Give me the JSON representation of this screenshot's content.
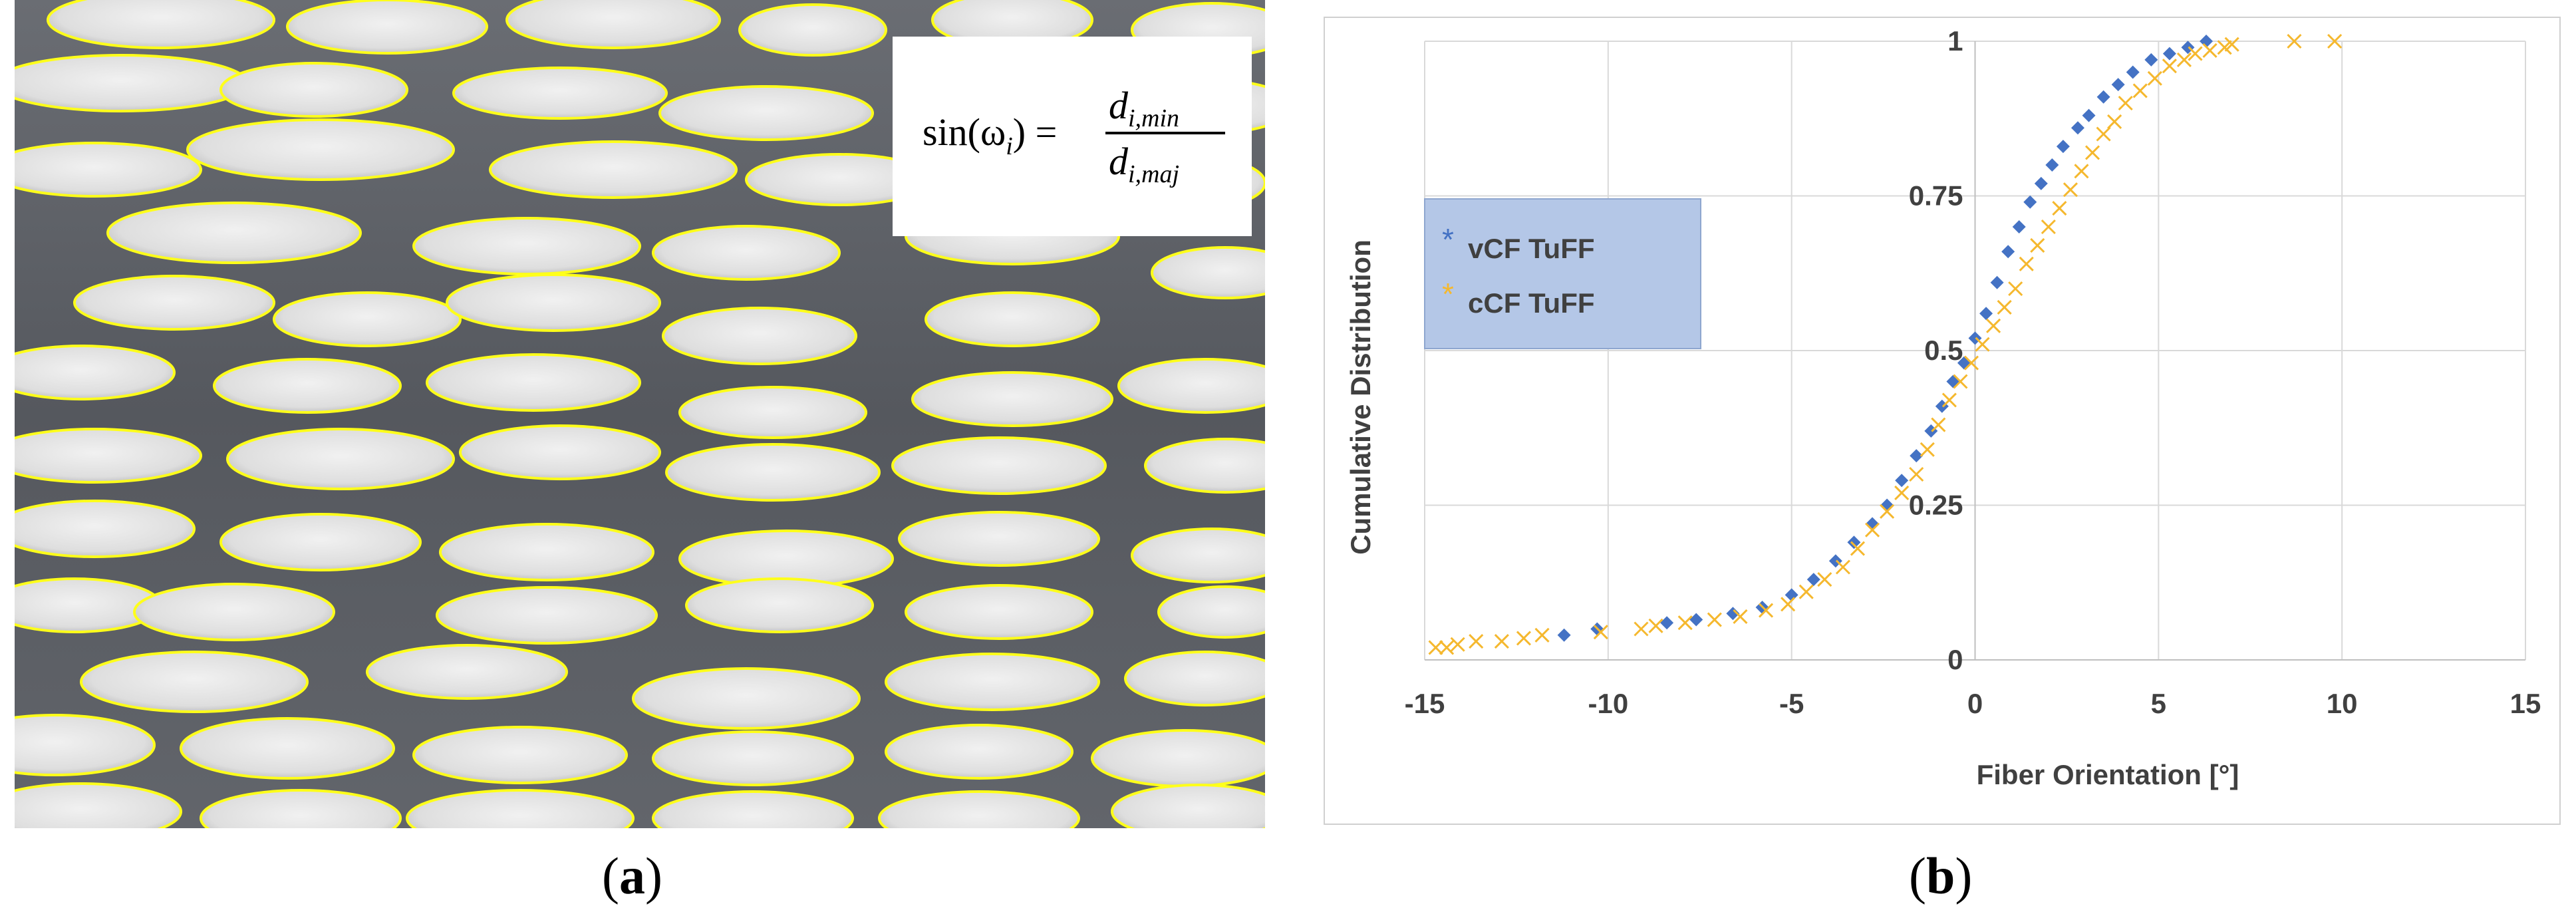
{
  "panel_a": {
    "label_open": "(",
    "label_letter": "a",
    "label_close": ")",
    "formula": {
      "lhs": "sin(ω",
      "lhs_sub": "i",
      "lhs_close": ") =",
      "num": "d",
      "num_sub": "i,min",
      "den": "d",
      "den_sub": "i,maj"
    },
    "outline_color": "#ffff1a",
    "background_color": "#5e6066",
    "fiber_fill": "#dcdcdc"
  },
  "panel_b": {
    "label_open": "(",
    "label_letter": "b",
    "label_close": ")"
  },
  "chart_data": {
    "type": "scatter",
    "title": "",
    "xlabel": "Fiber Orientation [°]",
    "ylabel": "Cumulative Distribution",
    "xlim": [
      -15,
      15
    ],
    "ylim": [
      0,
      1
    ],
    "xticks": [
      "-15",
      "-10",
      "-5",
      "0",
      "5",
      "10",
      "15"
    ],
    "yticks": [
      "0",
      "0.25",
      "0.5",
      "0.75",
      "1"
    ],
    "grid": true,
    "legend_position": "left",
    "series": [
      {
        "name": "vCF TuFF",
        "marker": "diamond",
        "color": "#4472c4",
        "x": [
          -11.2,
          -10.3,
          -8.4,
          -7.6,
          -6.6,
          -5.8,
          -5.0,
          -4.4,
          -3.8,
          -3.3,
          -2.8,
          -2.4,
          -2.0,
          -1.6,
          -1.2,
          -0.9,
          -0.6,
          -0.3,
          0.0,
          0.3,
          0.6,
          0.9,
          1.2,
          1.5,
          1.8,
          2.1,
          2.4,
          2.8,
          3.1,
          3.5,
          3.9,
          4.3,
          4.8,
          5.3,
          5.8,
          6.3
        ],
        "y": [
          0.04,
          0.05,
          0.06,
          0.065,
          0.075,
          0.085,
          0.105,
          0.13,
          0.16,
          0.19,
          0.22,
          0.25,
          0.29,
          0.33,
          0.37,
          0.41,
          0.45,
          0.48,
          0.52,
          0.56,
          0.61,
          0.66,
          0.7,
          0.74,
          0.77,
          0.8,
          0.83,
          0.86,
          0.88,
          0.91,
          0.93,
          0.95,
          0.97,
          0.98,
          0.99,
          1.0
        ]
      },
      {
        "name": "cCF TuFF",
        "marker": "x",
        "color": "#f5b82e",
        "x": [
          -14.7,
          -14.4,
          -14.1,
          -13.6,
          -12.9,
          -12.3,
          -11.8,
          -10.2,
          -9.1,
          -8.7,
          -7.9,
          -7.1,
          -6.4,
          -5.7,
          -5.1,
          -4.6,
          -4.1,
          -3.6,
          -3.2,
          -2.8,
          -2.4,
          -2.0,
          -1.6,
          -1.3,
          -1.0,
          -0.7,
          -0.4,
          -0.1,
          0.2,
          0.5,
          0.8,
          1.1,
          1.4,
          1.7,
          2.0,
          2.3,
          2.6,
          2.9,
          3.2,
          3.5,
          3.8,
          4.1,
          4.5,
          4.9,
          5.3,
          5.7,
          6.0,
          6.4,
          6.8,
          7.0,
          8.7,
          9.8
        ],
        "y": [
          0.02,
          0.02,
          0.025,
          0.03,
          0.03,
          0.035,
          0.04,
          0.045,
          0.05,
          0.055,
          0.06,
          0.065,
          0.07,
          0.08,
          0.09,
          0.11,
          0.13,
          0.15,
          0.18,
          0.21,
          0.24,
          0.27,
          0.3,
          0.34,
          0.38,
          0.42,
          0.45,
          0.48,
          0.51,
          0.54,
          0.57,
          0.6,
          0.64,
          0.67,
          0.7,
          0.73,
          0.76,
          0.79,
          0.82,
          0.85,
          0.87,
          0.9,
          0.92,
          0.94,
          0.96,
          0.97,
          0.98,
          0.985,
          0.99,
          0.995,
          1.0,
          1.0
        ]
      }
    ]
  }
}
